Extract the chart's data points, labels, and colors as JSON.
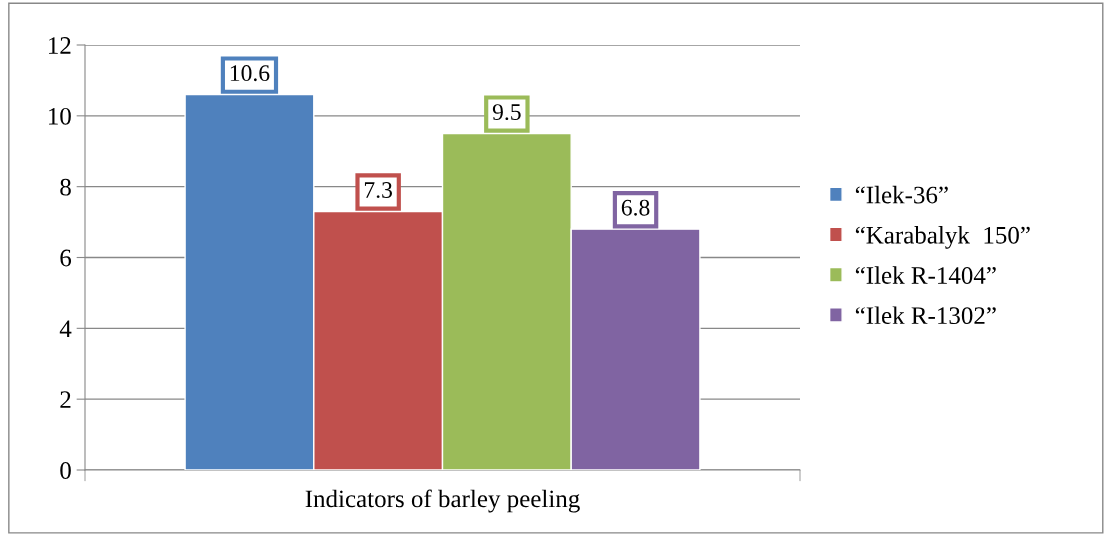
{
  "chart_data": {
    "type": "bar",
    "categories": [
      "Indicators of barley peeling"
    ],
    "series": [
      {
        "name": "“Ilek-36”",
        "color": "#4f81bd",
        "values": [
          10.6
        ]
      },
      {
        "name": "“Karabalyk  150”",
        "color": "#c0504d",
        "values": [
          7.3
        ]
      },
      {
        "name": "“Ilek R-1404”",
        "color": "#9bbb59",
        "values": [
          9.5
        ]
      },
      {
        "name": "“Ilek R-1302”",
        "color": "#8064a2",
        "values": [
          6.8
        ]
      }
    ],
    "ylim": [
      0,
      12
    ],
    "yticks": [
      0,
      2,
      4,
      6,
      8,
      10,
      12
    ],
    "grid": "y",
    "legend": "right",
    "data_labels": true
  }
}
